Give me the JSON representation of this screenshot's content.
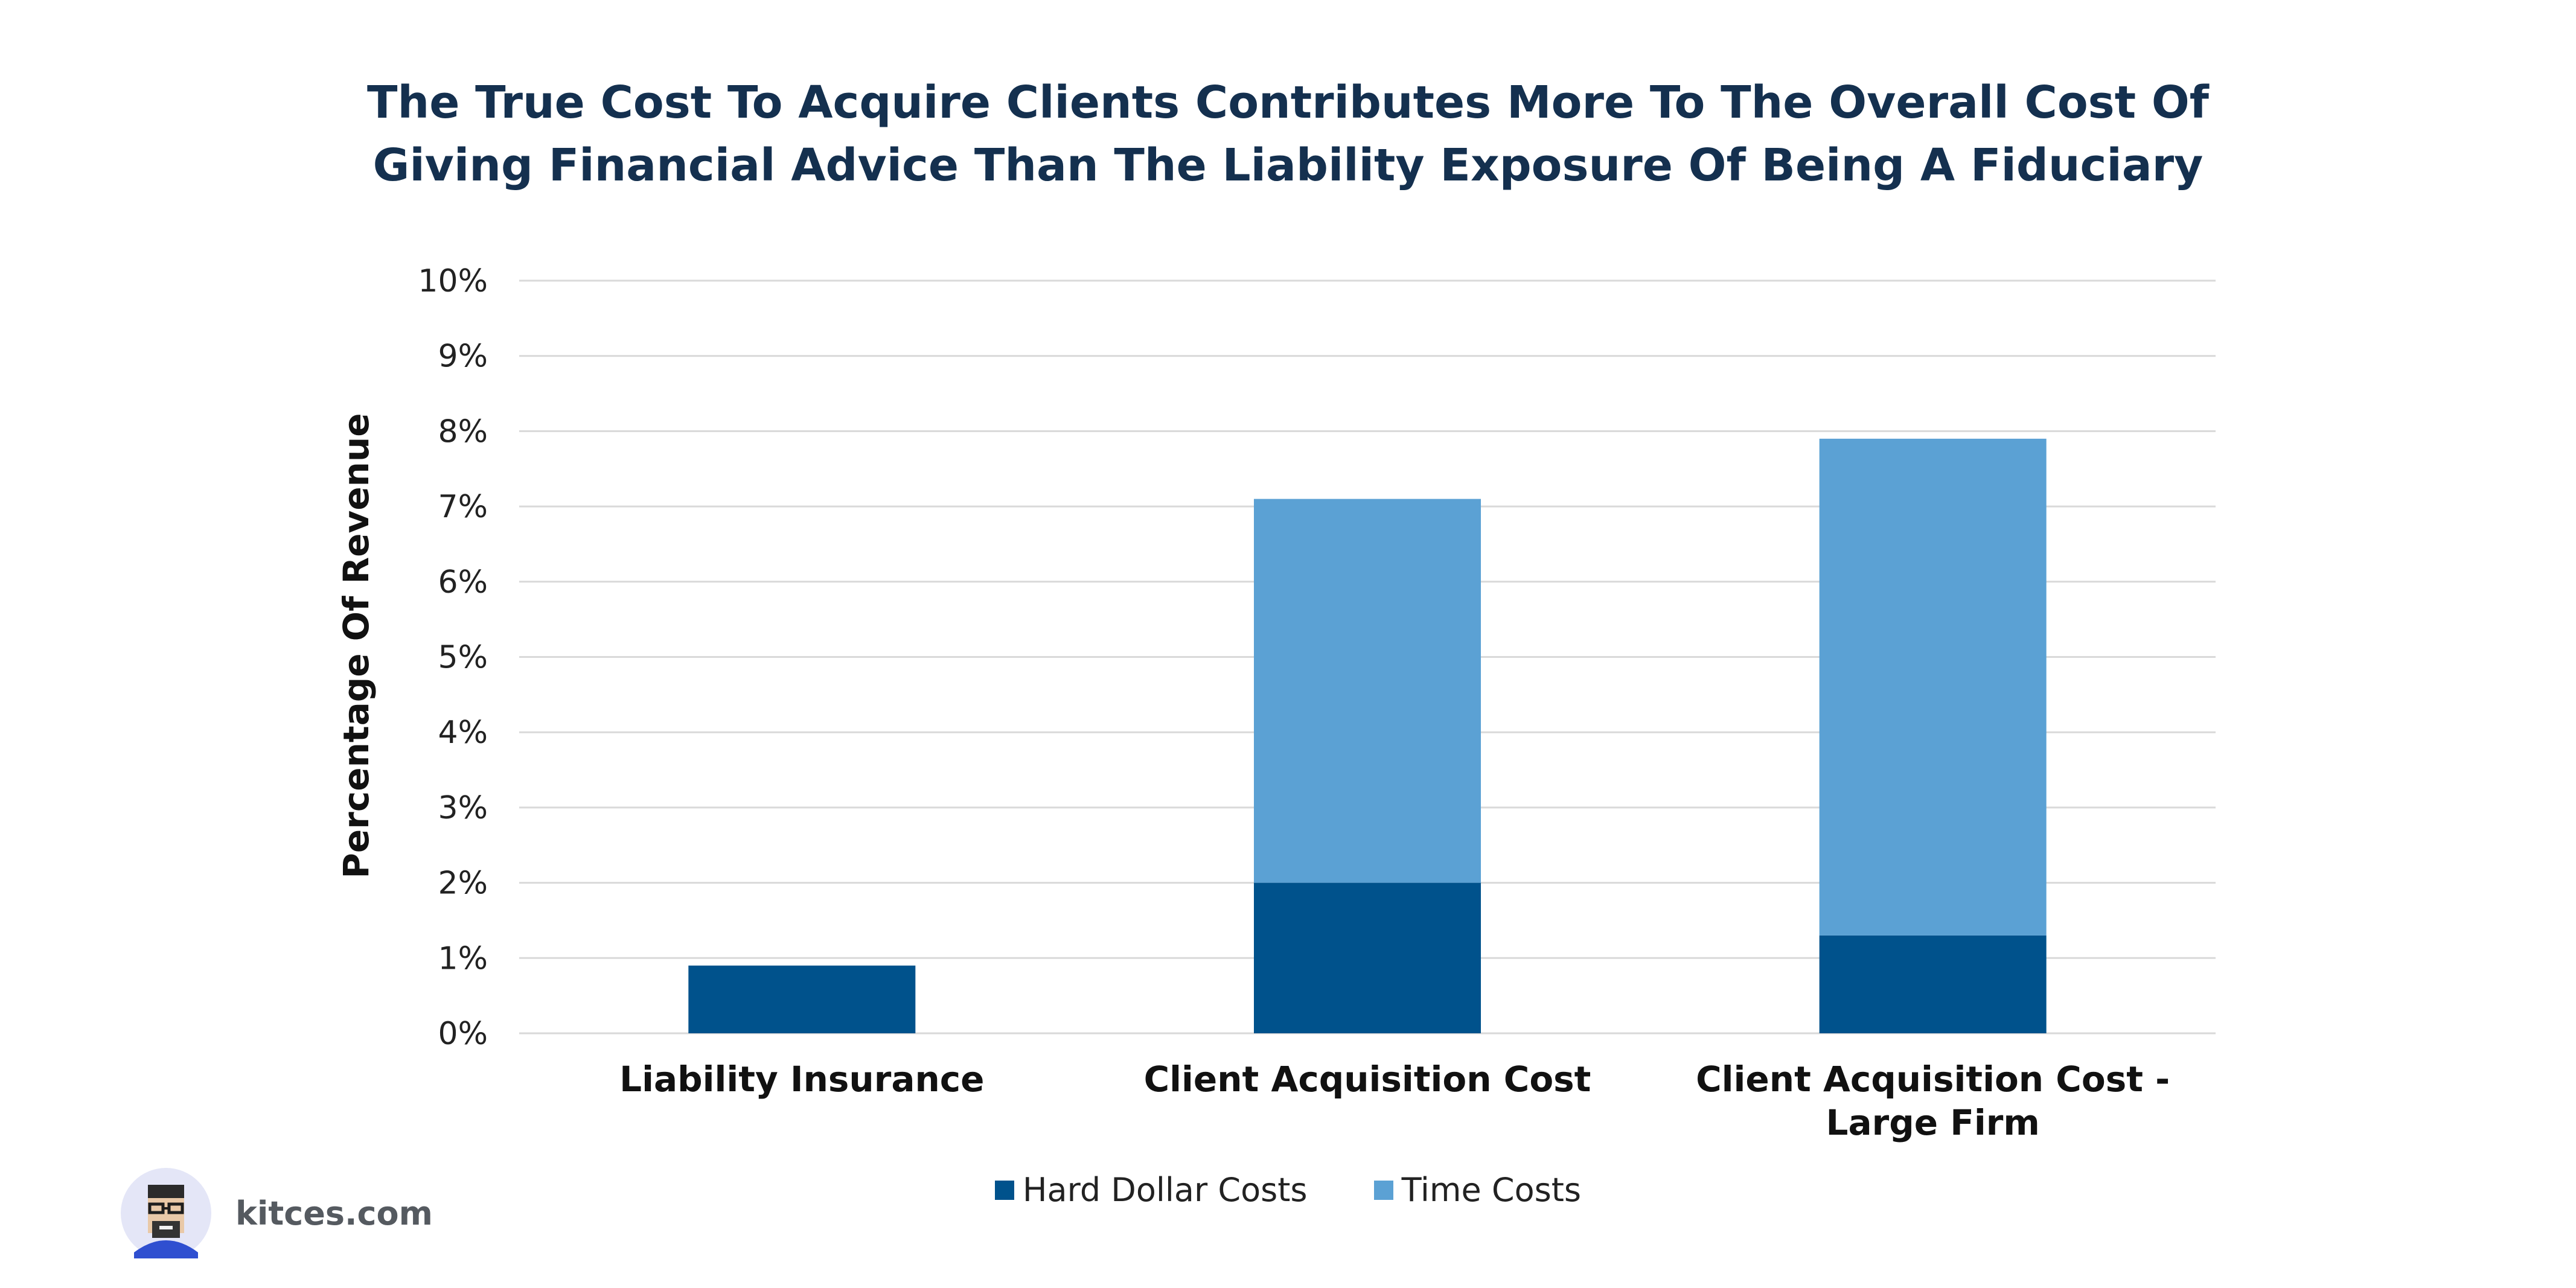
{
  "colors": {
    "hard_dollar": "#00528c",
    "time": "#5ba1d4",
    "grid": "#d9d9d9",
    "title": "#14304f"
  },
  "brand": {
    "name": "kitces.com",
    "avatar_icon": "avatar-icon"
  },
  "chart_data": {
    "type": "bar",
    "stacked": true,
    "title_lines": [
      "The True Cost To Acquire Clients Contributes More To The Overall Cost Of",
      "Giving Financial Advice Than The Liability Exposure Of Being A Fiduciary"
    ],
    "xlabel": "",
    "ylabel": "Percentage Of Revenue",
    "ylim": [
      0,
      10
    ],
    "yticks": [
      "0%",
      "1%",
      "2%",
      "3%",
      "4%",
      "5%",
      "6%",
      "7%",
      "8%",
      "9%",
      "10%"
    ],
    "grid": true,
    "legend_position": "bottom",
    "categories": [
      [
        "Liability Insurance"
      ],
      [
        "Client Acquisition Cost"
      ],
      [
        "Client Acquisition Cost -",
        "Large Firm"
      ]
    ],
    "series": [
      {
        "name": "Hard Dollar Costs",
        "values": [
          0.9,
          2.0,
          1.3
        ]
      },
      {
        "name": "Time Costs",
        "values": [
          0,
          5.1,
          6.6
        ]
      }
    ]
  }
}
